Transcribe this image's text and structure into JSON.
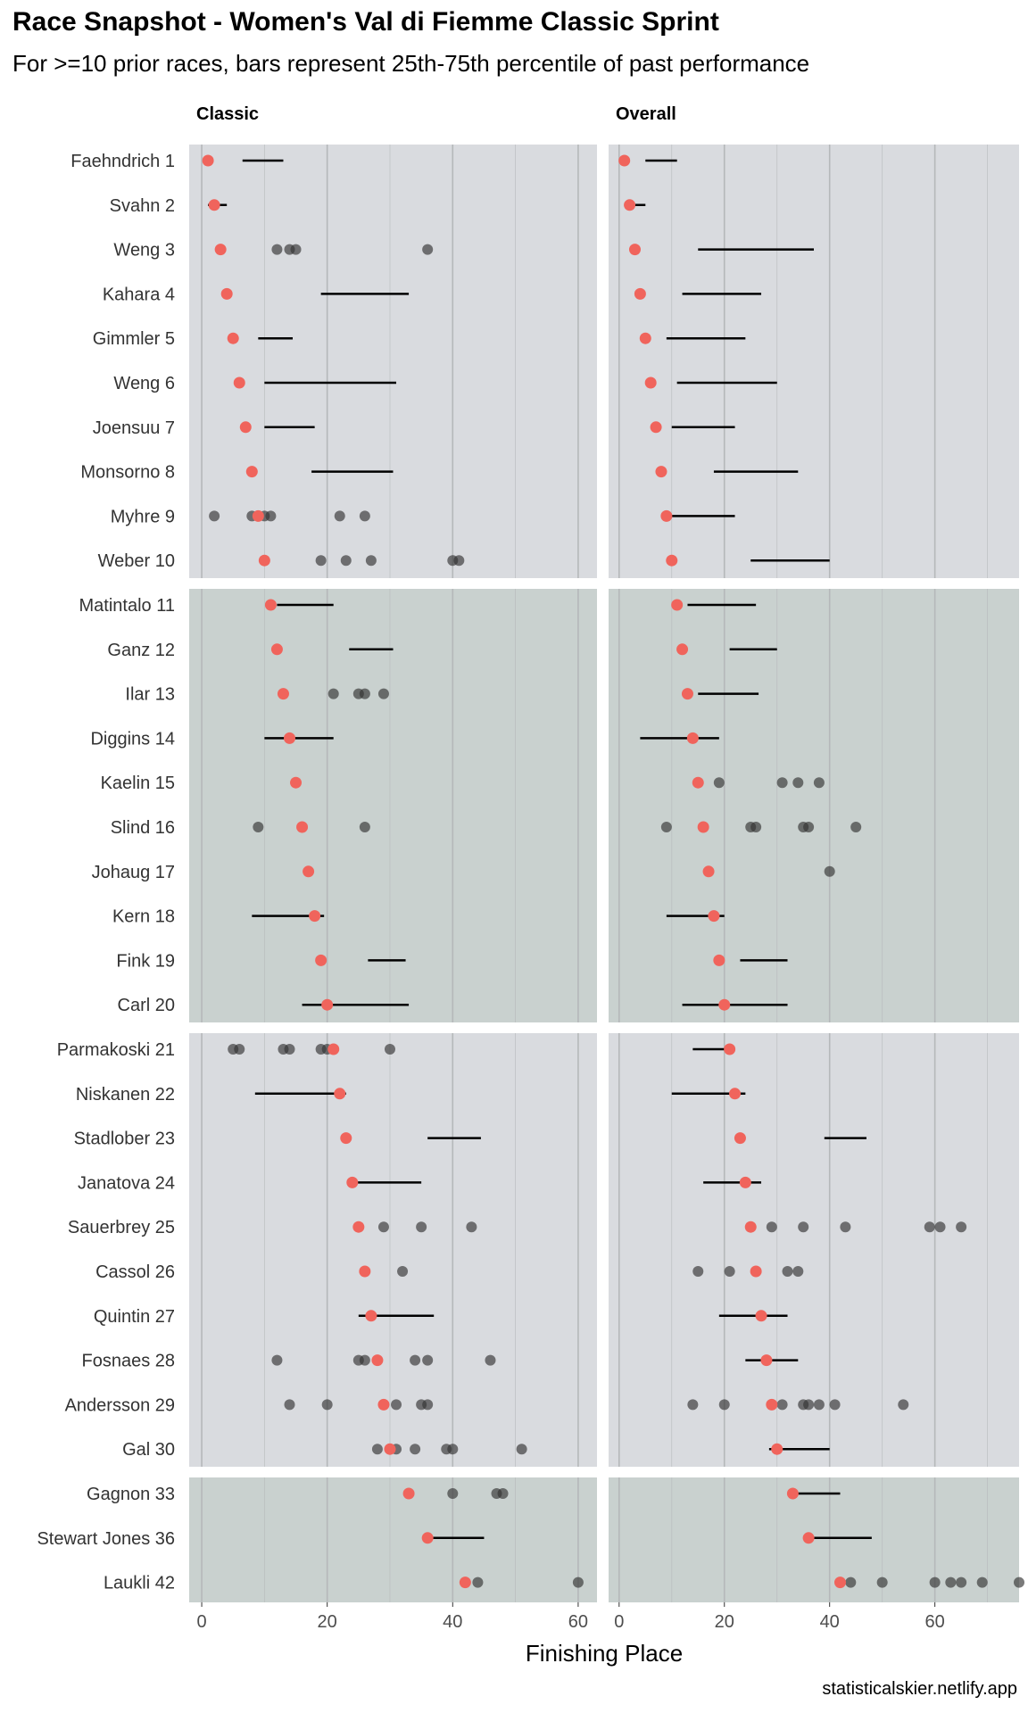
{
  "title": "Race Snapshot -  Women's Val di Fiemme Classic Sprint",
  "subtitle": "For >=10 prior races, bars represent 25th-75th percentile of past performance",
  "caption": "statisticalskier.netlify.app",
  "colors": {
    "panel_light": "#d9dbdf",
    "panel_dark": "#c9d1cf",
    "current_point": "#f0645c",
    "past_point": "#333333",
    "range_bar": "#000000",
    "grid": "#b5b8ba"
  },
  "chart_data": {
    "type": "scatter",
    "xlabel": "Finishing Place",
    "xlim": [
      -2,
      63
    ],
    "xlim_overall": [
      -2,
      76
    ],
    "x_ticks": [
      0,
      20,
      40,
      60
    ],
    "grid": true,
    "facets": [
      "Classic",
      "Overall"
    ],
    "athletes": [
      {
        "label": "Faehndrich 1",
        "current": 1,
        "classic": {
          "range": [
            6.5,
            13
          ],
          "points": []
        },
        "overall": {
          "range": [
            5,
            11
          ],
          "points": []
        }
      },
      {
        "label": "Svahn 2",
        "current": 2,
        "classic": {
          "range": [
            1,
            4
          ],
          "points": []
        },
        "overall": {
          "range": [
            2,
            5
          ],
          "points": []
        }
      },
      {
        "label": "Weng 3",
        "current": 3,
        "classic": {
          "range": null,
          "points": [
            12,
            14,
            15,
            36
          ]
        },
        "overall": {
          "range": [
            15,
            37
          ],
          "points": []
        }
      },
      {
        "label": "Kahara 4",
        "current": 4,
        "classic": {
          "range": [
            19,
            33
          ],
          "points": []
        },
        "overall": {
          "range": [
            12,
            27
          ],
          "points": []
        }
      },
      {
        "label": "Gimmler 5",
        "current": 5,
        "classic": {
          "range": [
            9,
            14.5
          ],
          "points": []
        },
        "overall": {
          "range": [
            9,
            24
          ],
          "points": []
        }
      },
      {
        "label": "Weng 6",
        "current": 6,
        "classic": {
          "range": [
            10,
            31
          ],
          "points": []
        },
        "overall": {
          "range": [
            11,
            30
          ],
          "points": []
        }
      },
      {
        "label": "Joensuu 7",
        "current": 7,
        "classic": {
          "range": [
            10,
            18
          ],
          "points": []
        },
        "overall": {
          "range": [
            10,
            22
          ],
          "points": []
        }
      },
      {
        "label": "Monsorno 8",
        "current": 8,
        "classic": {
          "range": [
            17.5,
            30.5
          ],
          "points": []
        },
        "overall": {
          "range": [
            18,
            34
          ],
          "points": []
        }
      },
      {
        "label": "Myhre 9",
        "current": 9,
        "classic": {
          "range": null,
          "points": [
            2,
            8,
            10,
            11,
            22,
            26
          ]
        },
        "overall": {
          "range": [
            10,
            22
          ],
          "points": []
        }
      },
      {
        "label": "Weber 10",
        "current": 10,
        "classic": {
          "range": null,
          "points": [
            19,
            23,
            27,
            40,
            41
          ]
        },
        "overall": {
          "range": [
            25,
            40
          ],
          "points": []
        }
      },
      {
        "label": "Matintalo 11",
        "current": 11,
        "classic": {
          "range": [
            12,
            21
          ],
          "points": []
        },
        "overall": {
          "range": [
            13,
            26
          ],
          "points": []
        }
      },
      {
        "label": "Ganz 12",
        "current": 12,
        "classic": {
          "range": [
            23.5,
            30.5
          ],
          "points": []
        },
        "overall": {
          "range": [
            21,
            30
          ],
          "points": []
        }
      },
      {
        "label": "Ilar 13",
        "current": 13,
        "classic": {
          "range": null,
          "points": [
            21,
            25,
            26,
            29
          ]
        },
        "overall": {
          "range": [
            15,
            26.5
          ],
          "points": []
        }
      },
      {
        "label": "Diggins 14",
        "current": 14,
        "classic": {
          "range": [
            10,
            21
          ],
          "points": []
        },
        "overall": {
          "range": [
            4,
            19
          ],
          "points": []
        }
      },
      {
        "label": "Kaelin 15",
        "current": 15,
        "classic": {
          "range": null,
          "points": []
        },
        "overall": {
          "range": null,
          "points": [
            19,
            31,
            34,
            38
          ]
        }
      },
      {
        "label": "Slind 16",
        "current": 16,
        "classic": {
          "range": null,
          "points": [
            9,
            26
          ]
        },
        "overall": {
          "range": null,
          "points": [
            9,
            25,
            26,
            35,
            36,
            45
          ]
        }
      },
      {
        "label": "Johaug 17",
        "current": 17,
        "classic": {
          "range": null,
          "points": []
        },
        "overall": {
          "range": null,
          "points": [
            40
          ]
        }
      },
      {
        "label": "Kern 18",
        "current": 18,
        "classic": {
          "range": [
            8,
            19.5
          ],
          "points": []
        },
        "overall": {
          "range": [
            9,
            20
          ],
          "points": []
        }
      },
      {
        "label": "Fink 19",
        "current": 19,
        "classic": {
          "range": [
            26.5,
            32.5
          ],
          "points": []
        },
        "overall": {
          "range": [
            23,
            32
          ],
          "points": []
        }
      },
      {
        "label": "Carl 20",
        "current": 20,
        "classic": {
          "range": [
            16,
            33
          ],
          "points": []
        },
        "overall": {
          "range": [
            12,
            32
          ],
          "points": []
        }
      },
      {
        "label": "Parmakoski 21",
        "current": 21,
        "classic": {
          "range": null,
          "points": [
            5,
            6,
            13,
            14,
            19,
            20,
            30
          ]
        },
        "overall": {
          "range": [
            14,
            21
          ],
          "points": []
        }
      },
      {
        "label": "Niskanen 22",
        "current": 22,
        "classic": {
          "range": [
            8.5,
            23
          ],
          "points": []
        },
        "overall": {
          "range": [
            10,
            24
          ],
          "points": []
        }
      },
      {
        "label": "Stadlober 23",
        "current": 23,
        "classic": {
          "range": [
            36,
            44.5
          ],
          "points": []
        },
        "overall": {
          "range": [
            39,
            47
          ],
          "points": []
        }
      },
      {
        "label": "Janatova 24",
        "current": 24,
        "classic": {
          "range": [
            24,
            35
          ],
          "points": []
        },
        "overall": {
          "range": [
            16,
            27
          ],
          "points": []
        }
      },
      {
        "label": "Sauerbrey 25",
        "current": 25,
        "classic": {
          "range": null,
          "points": [
            29,
            35,
            43
          ]
        },
        "overall": {
          "range": null,
          "points": [
            29,
            35,
            43,
            59,
            61,
            65
          ]
        }
      },
      {
        "label": "Cassol 26",
        "current": 26,
        "classic": {
          "range": null,
          "points": [
            32
          ]
        },
        "overall": {
          "range": null,
          "points": [
            15,
            21,
            32,
            34
          ]
        }
      },
      {
        "label": "Quintin 27",
        "current": 27,
        "classic": {
          "range": [
            25,
            37
          ],
          "points": []
        },
        "overall": {
          "range": [
            19,
            32
          ],
          "points": []
        }
      },
      {
        "label": "Fosnaes 28",
        "current": 28,
        "classic": {
          "range": null,
          "points": [
            12,
            25,
            26,
            34,
            36,
            46
          ]
        },
        "overall": {
          "range": [
            24,
            34
          ],
          "points": []
        }
      },
      {
        "label": "Andersson 29",
        "current": 29,
        "classic": {
          "range": null,
          "points": [
            14,
            20,
            31,
            35,
            36
          ]
        },
        "overall": {
          "range": null,
          "points": [
            14,
            20,
            31,
            35,
            36,
            38,
            41,
            54
          ]
        }
      },
      {
        "label": "Gal 30",
        "current": 30,
        "classic": {
          "range": null,
          "points": [
            28,
            30,
            31,
            34,
            39,
            40,
            51
          ]
        },
        "overall": {
          "range": [
            28.5,
            40
          ],
          "points": []
        }
      },
      {
        "label": "Gagnon 33",
        "current": 33,
        "classic": {
          "range": null,
          "points": [
            40,
            47,
            48
          ]
        },
        "overall": {
          "range": [
            32,
            42
          ],
          "points": []
        }
      },
      {
        "label": "Stewart Jones 36",
        "current": 36,
        "classic": {
          "range": [
            36,
            45
          ],
          "points": []
        },
        "overall": {
          "range": [
            37,
            48
          ],
          "points": []
        }
      },
      {
        "label": "Laukli 42",
        "current": 42,
        "classic": {
          "range": null,
          "points": [
            44,
            60
          ]
        },
        "overall": {
          "range": null,
          "points": [
            44,
            50,
            60,
            63,
            65,
            69,
            76
          ]
        }
      }
    ]
  }
}
